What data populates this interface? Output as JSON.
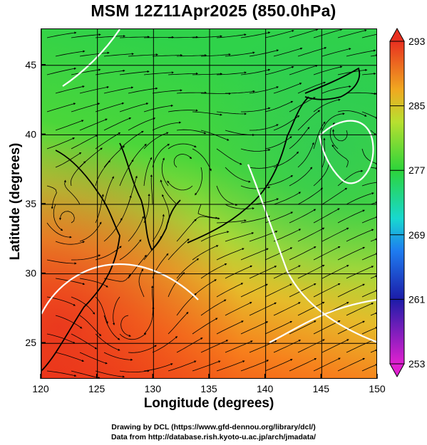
{
  "title": "MSM 12Z11Apr2025 (850.0hPa)",
  "x_axis": {
    "label": "Longitude (degrees)",
    "range": [
      120,
      150
    ],
    "ticks": [
      "120",
      "125",
      "130",
      "135",
      "140",
      "145",
      "150"
    ]
  },
  "y_axis": {
    "label": "Latitude  (degrees)",
    "range": [
      22.4,
      47.6
    ],
    "ticks": [
      "25",
      "30",
      "35",
      "40",
      "45"
    ]
  },
  "colorbar": {
    "range": [
      253,
      293
    ],
    "ticks": [
      "253",
      "261",
      "269",
      "277",
      "285",
      "293"
    ]
  },
  "footer": {
    "line1": "Drawing by DCL (https://www.gfd-dennou.org/library/dcl/)",
    "line2": "Data from http://database.rish.kyoto-u.ac.jp/arch/jmadata/"
  }
}
